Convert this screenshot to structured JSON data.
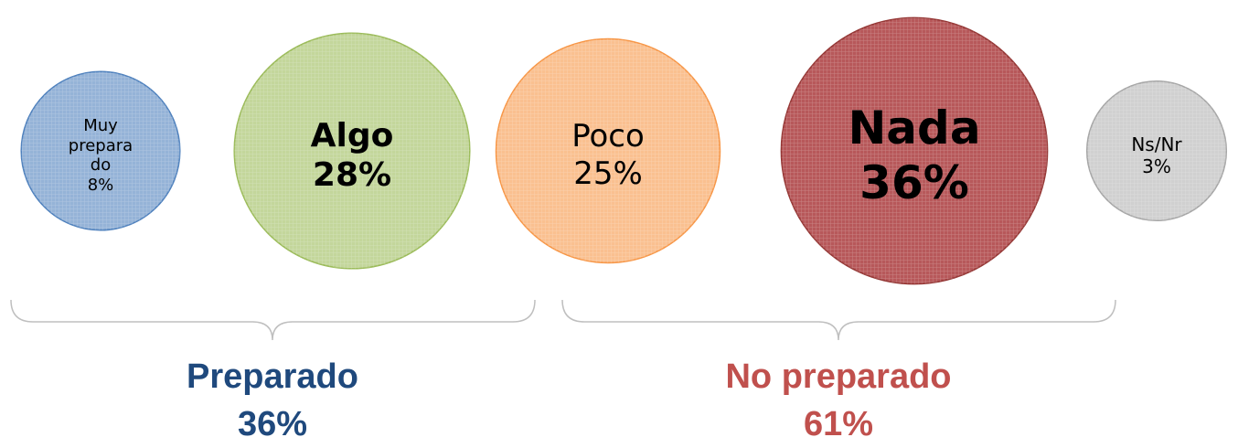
{
  "chart_data": {
    "type": "bubble",
    "categories": [
      "Muy preparado",
      "Algo",
      "Poco",
      "Nada",
      "Ns/Nr"
    ],
    "values": [
      8,
      28,
      25,
      36,
      3
    ],
    "value_labels": [
      "8%",
      "28%",
      "25%",
      "36%",
      "3%"
    ],
    "colors": [
      "#95b3d7",
      "#c3d69b",
      "#fac090",
      "#b7585a",
      "#d0d0d0"
    ],
    "groups": [
      {
        "name": "Preparado",
        "value": 36,
        "value_label": "36%",
        "color": "#1f497d"
      },
      {
        "name": "No preparado",
        "value": 61,
        "value_label": "61%",
        "color": "#c0504d"
      }
    ]
  }
}
